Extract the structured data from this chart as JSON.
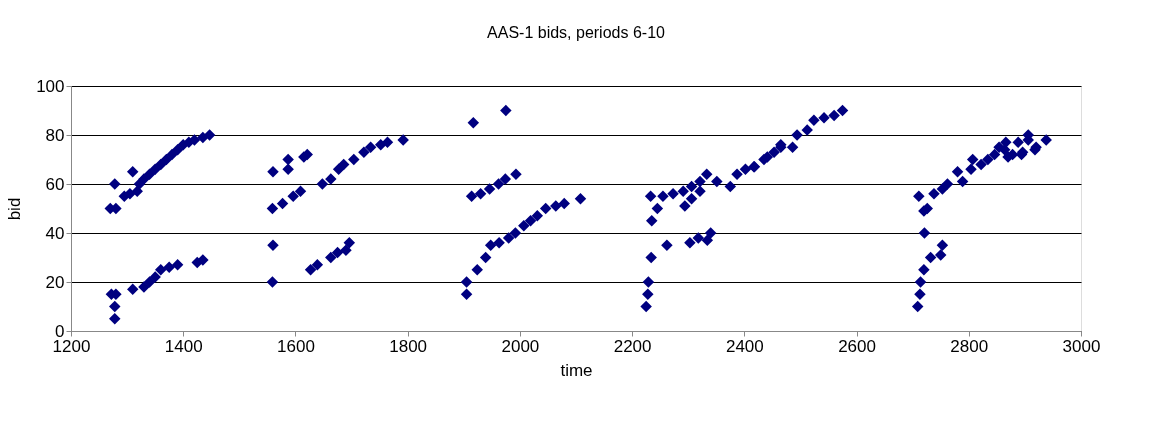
{
  "chart_data": {
    "type": "scatter",
    "title": "AAS-1 bids, periods 6-10",
    "xlabel": "time",
    "ylabel": "bid",
    "xlim": [
      1200,
      3000
    ],
    "xticks": [
      1200,
      1400,
      1600,
      1800,
      2000,
      2200,
      2400,
      2600,
      2800,
      3000
    ],
    "ylim": [
      0,
      100
    ],
    "yticks": [
      0,
      20,
      40,
      60,
      80,
      100
    ],
    "grid": "y",
    "marker": "diamond",
    "series": [
      {
        "color": "#000080",
        "x": [
          1270,
          1280,
          1278,
          1295,
          1305,
          1310,
          1318,
          1322,
          1330,
          1340,
          1350,
          1360,
          1370,
          1380,
          1390,
          1400,
          1410,
          1420,
          1435,
          1447,
          1272,
          1280,
          1278,
          1278,
          1310,
          1330,
          1340,
          1350,
          1360,
          1375,
          1390,
          1425,
          1435,
          1560,
          1559,
          1560,
          1559,
          1587,
          1587,
          1621,
          1615,
          1577,
          1596,
          1609,
          1648,
          1663,
          1677,
          1686,
          1704,
          1722,
          1734,
          1752,
          1764,
          1792,
          1627,
          1639,
          1663,
          1675,
          1690,
          1696,
          1917,
          1975,
          1914,
          1930,
          1946,
          1962,
          1974,
          1993,
          1905,
          1905,
          1924,
          1939,
          1948,
          1963,
          1980,
          1992,
          2007,
          2019,
          2031,
          2046,
          2064,
          2079,
          2108,
          2225,
          2228,
          2229,
          2234,
          2235,
          2233,
          2245,
          2262,
          2303,
          2318,
          2340,
          2334,
          2255,
          2273,
          2291,
          2306,
          2321,
          2333,
          2294,
          2306,
          2321,
          2351,
          2375,
          2387,
          2402,
          2417,
          2435,
          2453,
          2465,
          2418,
          2441,
          2465,
          2486,
          2494,
          2512,
          2524,
          2542,
          2560,
          2575,
          2709,
          2713,
          2714,
          2720,
          2732,
          2750,
          2753,
          2721,
          2720,
          2711,
          2726,
          2738,
          2753,
          2762,
          2780,
          2789,
          2804,
          2822,
          2834,
          2846,
          2864,
          2870,
          2888,
          2894,
          2906,
          2918,
          2807,
          2854,
          2866,
          2878,
          2906,
          2896,
          2920,
          2938
        ],
        "values": [
          50,
          50,
          60,
          55,
          56,
          65,
          57,
          60,
          62,
          64,
          66,
          68,
          70,
          72,
          74,
          76,
          77,
          78,
          79,
          80,
          15,
          15,
          10,
          5,
          17,
          18,
          20,
          22,
          25,
          26,
          27,
          28,
          29,
          65,
          50,
          35,
          20,
          70,
          66,
          72,
          71,
          52,
          55,
          57,
          60,
          62,
          66,
          68,
          70,
          73,
          75,
          76,
          77,
          78,
          25,
          27,
          30,
          32,
          33,
          36,
          85,
          90,
          55,
          56,
          58,
          60,
          62,
          64,
          15,
          20,
          25,
          30,
          35,
          36,
          38,
          40,
          43,
          45,
          47,
          50,
          51,
          52,
          54,
          10,
          15,
          20,
          30,
          45,
          55,
          50,
          35,
          36,
          38,
          40,
          37,
          55,
          56,
          57,
          59,
          61,
          64,
          51,
          54,
          57,
          61,
          59,
          64,
          66,
          67,
          70,
          73,
          76,
          67,
          71,
          75,
          75,
          80,
          82,
          86,
          87,
          88,
          90,
          10,
          15,
          20,
          25,
          30,
          31,
          35,
          40,
          49,
          55,
          50,
          56,
          58,
          60,
          65,
          61,
          66,
          68,
          70,
          72,
          74,
          71,
          77,
          72,
          78,
          74,
          70,
          75,
          77,
          72,
          80,
          73,
          75,
          78
        ]
      }
    ]
  }
}
